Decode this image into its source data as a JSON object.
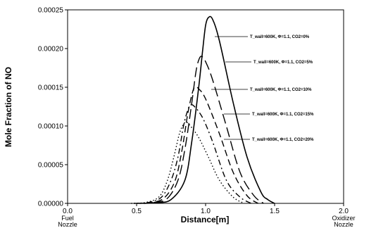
{
  "chart_data": {
    "type": "line",
    "title": "",
    "xlabel": "Distance[m]",
    "ylabel": "Mole Fraction of NO",
    "xlim": [
      0.0,
      2.0
    ],
    "ylim": [
      0.0,
      0.00025
    ],
    "x_ticks": [
      {
        "value": 0.0,
        "label": "0.0",
        "sublabel": "Fuel Nozzle"
      },
      {
        "value": 0.5,
        "label": "0.5",
        "sublabel": ""
      },
      {
        "value": 1.0,
        "label": "1.0",
        "sublabel": ""
      },
      {
        "value": 1.5,
        "label": "1.5",
        "sublabel": ""
      },
      {
        "value": 2.0,
        "label": "2.0",
        "sublabel": "Oxidizer Nozzle"
      }
    ],
    "y_ticks": [
      {
        "value": 0.0,
        "label": "0.00000"
      },
      {
        "value": 5e-05,
        "label": "0.00005"
      },
      {
        "value": 0.0001,
        "label": "0.00010"
      },
      {
        "value": 0.00015,
        "label": "0.00015"
      },
      {
        "value": 0.0002,
        "label": "0.00020"
      },
      {
        "value": 0.00025,
        "label": "0.00025"
      }
    ],
    "grid": false,
    "legend": "none",
    "series": [
      {
        "annotation": "T_wall=600K, Φ=1.1, CO2=0%",
        "dash": "solid",
        "x": [
          0.55,
          0.65,
          0.75,
          0.85,
          0.9,
          0.95,
          0.98,
          1.0,
          1.02,
          1.05,
          1.1,
          1.2,
          1.3,
          1.4,
          1.45,
          1.5
        ],
        "y": [
          0,
          1e-06,
          5e-06,
          3e-05,
          8e-05,
          0.00015,
          0.0002,
          0.00023,
          0.00024,
          0.000238,
          0.00021,
          0.00013,
          6e-05,
          1.5e-05,
          5e-06,
          0
        ]
      },
      {
        "annotation": "T_wall=600K, Φ=1.1, CO2=5%",
        "dash": "long-dash",
        "x": [
          0.52,
          0.62,
          0.72,
          0.8,
          0.85,
          0.9,
          0.93,
          0.95,
          0.97,
          1.0,
          1.05,
          1.15,
          1.25,
          1.35,
          1.42
        ],
        "y": [
          0,
          1e-06,
          6e-06,
          3e-05,
          7e-05,
          0.00013,
          0.00017,
          0.000185,
          0.00019,
          0.000183,
          0.00016,
          0.0001,
          4e-05,
          1e-05,
          0
        ]
      },
      {
        "annotation": "T_wall=600K, Φ=1.1, CO2=10%",
        "dash": "medium-dash",
        "x": [
          0.5,
          0.6,
          0.7,
          0.78,
          0.83,
          0.87,
          0.9,
          0.92,
          0.95,
          1.0,
          1.1,
          1.2,
          1.3,
          1.38
        ],
        "y": [
          0,
          1e-06,
          7e-06,
          3e-05,
          7e-05,
          0.000115,
          0.00014,
          0.00015,
          0.000148,
          0.000135,
          9e-05,
          4e-05,
          1e-05,
          0
        ]
      },
      {
        "annotation": "T_wall=600K, Φ=1.1, CO2=15%",
        "dash": "dash-dot",
        "x": [
          0.48,
          0.58,
          0.68,
          0.75,
          0.8,
          0.84,
          0.87,
          0.89,
          0.92,
          0.98,
          1.05,
          1.15,
          1.25,
          1.33
        ],
        "y": [
          0,
          1e-06,
          8e-06,
          3e-05,
          6e-05,
          0.0001,
          0.00012,
          0.000127,
          0.000125,
          0.00011,
          8e-05,
          3e-05,
          8e-06,
          0
        ]
      },
      {
        "annotation": "T_wall=600K, Φ=1.1, CO2=20%",
        "dash": "dotted",
        "x": [
          0.46,
          0.56,
          0.66,
          0.72,
          0.77,
          0.81,
          0.84,
          0.86,
          0.89,
          0.95,
          1.02,
          1.1,
          1.2,
          1.28
        ],
        "y": [
          0,
          1e-06,
          8e-06,
          2.8e-05,
          6e-05,
          9e-05,
          0.000102,
          0.000105,
          0.0001,
          8.5e-05,
          6e-05,
          3e-05,
          8e-06,
          0
        ]
      }
    ]
  }
}
